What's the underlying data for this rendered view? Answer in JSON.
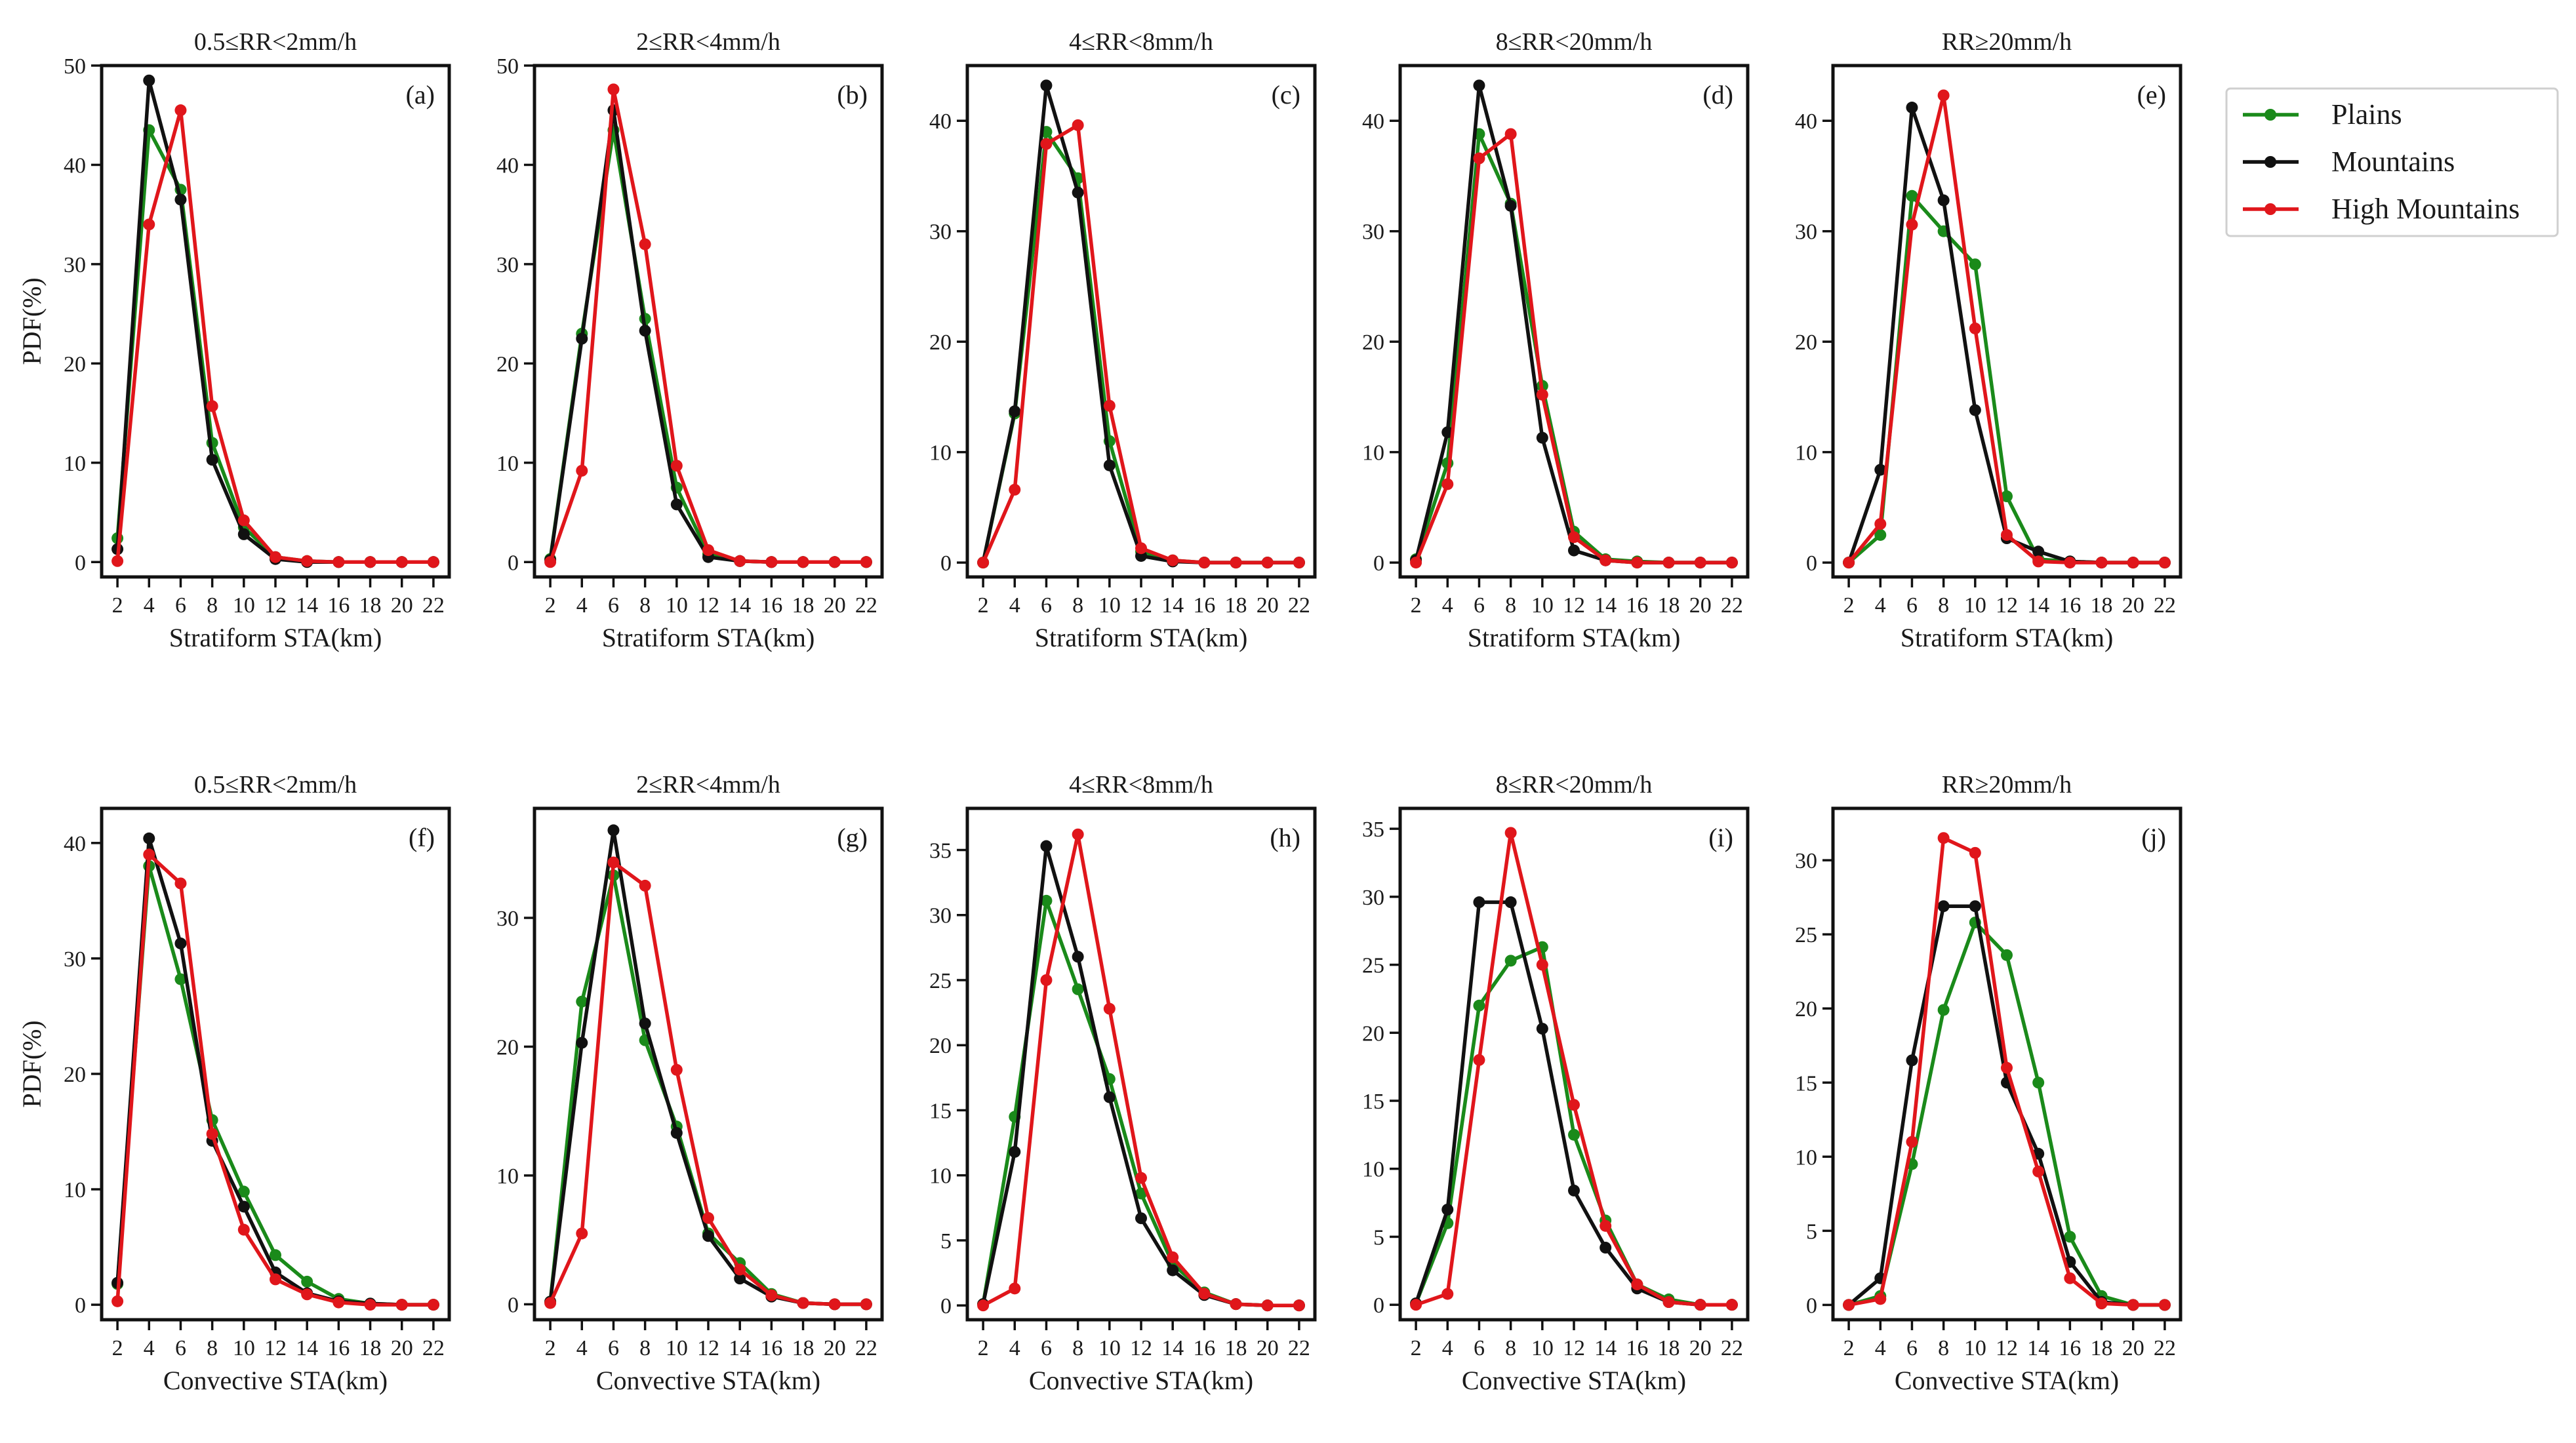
{
  "legend": {
    "items": [
      {
        "label": "Plains",
        "color": "#1a8a1a"
      },
      {
        "label": "Mountains",
        "color": "#111111"
      },
      {
        "label": "High Mountains",
        "color": "#e0161b"
      }
    ]
  },
  "chart_data": [
    {
      "type": "line",
      "title": "0.5≤RR<2mm/h",
      "tag": "(a)",
      "xlabel": "Stratiform STA(km)",
      "ylabel": "PDF(%)",
      "x": [
        2,
        4,
        6,
        8,
        10,
        12,
        14,
        16,
        18,
        20,
        22
      ],
      "xticks": [
        "2",
        "4",
        "6",
        "8",
        "10",
        "12",
        "14",
        "16",
        "18",
        "20",
        "22"
      ],
      "ylim": [
        -1.5,
        50
      ],
      "yticks": [
        0,
        10,
        20,
        30,
        40,
        50
      ],
      "series": [
        {
          "name": "Plains",
          "values": [
            2.4,
            43.5,
            37.5,
            12.0,
            3.5,
            0.5,
            0.1,
            0.0,
            0.0,
            0.0,
            0.0
          ]
        },
        {
          "name": "Mountains",
          "values": [
            1.3,
            48.5,
            36.5,
            10.3,
            2.8,
            0.3,
            0.0,
            0.0,
            0.0,
            0.0,
            0.0
          ]
        },
        {
          "name": "High Mountains",
          "values": [
            0.1,
            34.0,
            45.5,
            15.7,
            4.2,
            0.5,
            0.1,
            0.0,
            0.0,
            0.0,
            0.0
          ]
        }
      ]
    },
    {
      "type": "line",
      "title": "2≤RR<4mm/h",
      "tag": "(b)",
      "xlabel": "Stratiform STA(km)",
      "ylabel": "",
      "x": [
        2,
        4,
        6,
        8,
        10,
        12,
        14,
        16,
        18,
        20,
        22
      ],
      "xticks": [
        "2",
        "4",
        "6",
        "8",
        "10",
        "12",
        "14",
        "16",
        "18",
        "20",
        "22"
      ],
      "ylim": [
        -1.5,
        50
      ],
      "yticks": [
        0,
        10,
        20,
        30,
        40,
        50
      ],
      "series": [
        {
          "name": "Plains",
          "values": [
            0.3,
            23.0,
            43.5,
            24.5,
            7.5,
            0.8,
            0.1,
            0.0,
            0.0,
            0.0,
            0.0
          ]
        },
        {
          "name": "Mountains",
          "values": [
            0.2,
            22.5,
            45.5,
            23.3,
            5.8,
            0.5,
            0.1,
            0.0,
            0.0,
            0.0,
            0.0
          ]
        },
        {
          "name": "High Mountains",
          "values": [
            0.0,
            9.2,
            47.6,
            32.0,
            9.7,
            1.2,
            0.1,
            0.0,
            0.0,
            0.0,
            0.0
          ]
        }
      ]
    },
    {
      "type": "line",
      "title": "4≤RR<8mm/h",
      "tag": "(c)",
      "xlabel": "Stratiform STA(km)",
      "ylabel": "",
      "x": [
        2,
        4,
        6,
        8,
        10,
        12,
        14,
        16,
        18,
        20,
        22
      ],
      "xticks": [
        "2",
        "4",
        "6",
        "8",
        "10",
        "12",
        "14",
        "16",
        "18",
        "20",
        "22"
      ],
      "ylim": [
        -1.3,
        45
      ],
      "yticks": [
        0,
        10,
        20,
        30,
        40
      ],
      "series": [
        {
          "name": "Plains",
          "values": [
            0.0,
            13.5,
            39.0,
            34.8,
            11.0,
            1.0,
            0.2,
            0.0,
            0.0,
            0.0,
            0.0
          ]
        },
        {
          "name": "Mountains",
          "values": [
            0.0,
            13.7,
            43.2,
            33.5,
            8.8,
            0.6,
            0.1,
            0.0,
            0.0,
            0.0,
            0.0
          ]
        },
        {
          "name": "High Mountains",
          "values": [
            0.0,
            6.6,
            37.9,
            39.6,
            14.2,
            1.3,
            0.2,
            0.0,
            0.0,
            0.0,
            0.0
          ]
        }
      ]
    },
    {
      "type": "line",
      "title": "8≤RR<20mm/h",
      "tag": "(d)",
      "xlabel": "Stratiform STA(km)",
      "ylabel": "",
      "x": [
        2,
        4,
        6,
        8,
        10,
        12,
        14,
        16,
        18,
        20,
        22
      ],
      "xticks": [
        "2",
        "4",
        "6",
        "8",
        "10",
        "12",
        "14",
        "16",
        "18",
        "20",
        "22"
      ],
      "ylim": [
        -1.3,
        45
      ],
      "yticks": [
        0,
        10,
        20,
        30,
        40
      ],
      "series": [
        {
          "name": "Plains",
          "values": [
            0.3,
            9.0,
            38.8,
            32.5,
            16.0,
            2.8,
            0.3,
            0.1,
            0.0,
            0.0,
            0.0
          ]
        },
        {
          "name": "Mountains",
          "values": [
            0.2,
            11.8,
            43.2,
            32.3,
            11.3,
            1.1,
            0.2,
            0.0,
            0.0,
            0.0,
            0.0
          ]
        },
        {
          "name": "High Mountains",
          "values": [
            0.0,
            7.1,
            36.6,
            38.8,
            15.2,
            2.3,
            0.2,
            0.0,
            0.0,
            0.0,
            0.0
          ]
        }
      ]
    },
    {
      "type": "line",
      "title": "RR≥20mm/h",
      "tag": "(e)",
      "xlabel": "Stratiform STA(km)",
      "ylabel": "",
      "x": [
        2,
        4,
        6,
        8,
        10,
        12,
        14,
        16,
        18,
        20,
        22
      ],
      "xticks": [
        "2",
        "4",
        "6",
        "8",
        "10",
        "12",
        "14",
        "16",
        "18",
        "20",
        "22"
      ],
      "ylim": [
        -1.3,
        45
      ],
      "yticks": [
        0,
        10,
        20,
        30,
        40
      ],
      "series": [
        {
          "name": "Plains",
          "values": [
            0.0,
            2.5,
            33.2,
            30.0,
            27.0,
            6.0,
            0.3,
            0.1,
            0.0,
            0.0,
            0.0
          ]
        },
        {
          "name": "Mountains",
          "values": [
            0.0,
            8.4,
            41.2,
            32.8,
            13.8,
            2.2,
            1.0,
            0.1,
            0.0,
            0.0,
            0.0
          ]
        },
        {
          "name": "High Mountains",
          "values": [
            0.0,
            3.5,
            30.6,
            42.3,
            21.2,
            2.5,
            0.1,
            0.0,
            0.0,
            0.0,
            0.0
          ]
        }
      ]
    },
    {
      "type": "line",
      "title": "0.5≤RR<2mm/h",
      "tag": "(f)",
      "xlabel": "Convective STA(km)",
      "ylabel": "PDF(%)",
      "x": [
        2,
        4,
        6,
        8,
        10,
        12,
        14,
        16,
        18,
        20,
        22
      ],
      "xticks": [
        "2",
        "4",
        "6",
        "8",
        "10",
        "12",
        "14",
        "16",
        "18",
        "20",
        "22"
      ],
      "ylim": [
        -1.3,
        43
      ],
      "yticks": [
        0,
        10,
        20,
        30,
        40
      ],
      "series": [
        {
          "name": "Plains",
          "values": [
            1.8,
            38.0,
            28.2,
            16.0,
            9.8,
            4.3,
            2.0,
            0.5,
            0.1,
            0.0,
            0.0
          ]
        },
        {
          "name": "Mountains",
          "values": [
            1.9,
            40.4,
            31.3,
            14.2,
            8.5,
            2.8,
            1.0,
            0.3,
            0.1,
            0.0,
            0.0
          ]
        },
        {
          "name": "High Mountains",
          "values": [
            0.3,
            39.0,
            36.5,
            14.8,
            6.5,
            2.2,
            0.9,
            0.2,
            0.0,
            0.0,
            0.0
          ]
        }
      ]
    },
    {
      "type": "line",
      "title": "2≤RR<4mm/h",
      "tag": "(g)",
      "xlabel": "Convective STA(km)",
      "ylabel": "",
      "x": [
        2,
        4,
        6,
        8,
        10,
        12,
        14,
        16,
        18,
        20,
        22
      ],
      "xticks": [
        "2",
        "4",
        "6",
        "8",
        "10",
        "12",
        "14",
        "16",
        "18",
        "20",
        "22"
      ],
      "ylim": [
        -1.2,
        38.5
      ],
      "yticks": [
        0,
        10,
        20,
        30
      ],
      "series": [
        {
          "name": "Plains",
          "values": [
            0.2,
            23.5,
            33.3,
            20.5,
            13.8,
            5.5,
            3.2,
            0.8,
            0.1,
            0.0,
            0.0
          ]
        },
        {
          "name": "Mountains",
          "values": [
            0.2,
            20.3,
            36.8,
            21.8,
            13.3,
            5.3,
            2.0,
            0.6,
            0.1,
            0.0,
            0.0
          ]
        },
        {
          "name": "High Mountains",
          "values": [
            0.1,
            5.5,
            34.3,
            32.5,
            18.2,
            6.7,
            2.7,
            0.7,
            0.1,
            0.0,
            0.0
          ]
        }
      ]
    },
    {
      "type": "line",
      "title": "4≤RR<8mm/h",
      "tag": "(h)",
      "xlabel": "Convective STA(km)",
      "ylabel": "",
      "x": [
        2,
        4,
        6,
        8,
        10,
        12,
        14,
        16,
        18,
        20,
        22
      ],
      "xticks": [
        "2",
        "4",
        "6",
        "8",
        "10",
        "12",
        "14",
        "16",
        "18",
        "20",
        "22"
      ],
      "ylim": [
        -1.1,
        38.2
      ],
      "yticks": [
        0,
        5,
        10,
        15,
        20,
        25,
        30,
        35
      ],
      "series": [
        {
          "name": "Plains",
          "values": [
            0.1,
            14.5,
            31.1,
            24.3,
            17.4,
            8.6,
            3.2,
            1.0,
            0.1,
            0.0,
            0.0
          ]
        },
        {
          "name": "Mountains",
          "values": [
            0.1,
            11.8,
            35.3,
            26.8,
            16.0,
            6.7,
            2.7,
            0.8,
            0.1,
            0.0,
            0.0
          ]
        },
        {
          "name": "High Mountains",
          "values": [
            0.0,
            1.3,
            25.0,
            36.2,
            22.8,
            9.8,
            3.7,
            0.9,
            0.1,
            0.0,
            0.0
          ]
        }
      ]
    },
    {
      "type": "line",
      "title": "8≤RR<20mm/h",
      "tag": "(i)",
      "xlabel": "Convective STA(km)",
      "ylabel": "",
      "x": [
        2,
        4,
        6,
        8,
        10,
        12,
        14,
        16,
        18,
        20,
        22
      ],
      "xticks": [
        "2",
        "4",
        "6",
        "8",
        "10",
        "12",
        "14",
        "16",
        "18",
        "20",
        "22"
      ],
      "ylim": [
        -1.1,
        36.5
      ],
      "yticks": [
        0,
        5,
        10,
        15,
        20,
        25,
        30,
        35
      ],
      "series": [
        {
          "name": "Plains",
          "values": [
            0.1,
            6.0,
            22.0,
            25.3,
            26.3,
            12.5,
            6.2,
            1.5,
            0.4,
            0.0,
            0.0
          ]
        },
        {
          "name": "Mountains",
          "values": [
            0.1,
            7.0,
            29.6,
            29.6,
            20.3,
            8.4,
            4.2,
            1.2,
            0.2,
            0.0,
            0.0
          ]
        },
        {
          "name": "High Mountains",
          "values": [
            0.0,
            0.8,
            18.0,
            34.7,
            25.0,
            14.7,
            5.8,
            1.5,
            0.2,
            0.0,
            0.0
          ]
        }
      ]
    },
    {
      "type": "line",
      "title": "RR≥20mm/h",
      "tag": "(j)",
      "xlabel": "Convective STA(km)",
      "ylabel": "",
      "x": [
        2,
        4,
        6,
        8,
        10,
        12,
        14,
        16,
        18,
        20,
        22
      ],
      "xticks": [
        "2",
        "4",
        "6",
        "8",
        "10",
        "12",
        "14",
        "16",
        "18",
        "20",
        "22"
      ],
      "ylim": [
        -1.0,
        33.5
      ],
      "yticks": [
        0,
        5,
        10,
        15,
        20,
        25,
        30
      ],
      "series": [
        {
          "name": "Plains",
          "values": [
            0.0,
            0.6,
            9.5,
            19.9,
            25.8,
            23.6,
            15.0,
            4.6,
            0.6,
            0.0,
            0.0
          ]
        },
        {
          "name": "Mountains",
          "values": [
            0.0,
            1.8,
            16.5,
            26.9,
            26.9,
            15.0,
            10.2,
            2.9,
            0.2,
            0.0,
            0.0
          ]
        },
        {
          "name": "High Mountains",
          "values": [
            0.0,
            0.4,
            11.0,
            31.5,
            30.5,
            16.0,
            9.0,
            1.8,
            0.1,
            0.0,
            0.0
          ]
        }
      ]
    }
  ]
}
